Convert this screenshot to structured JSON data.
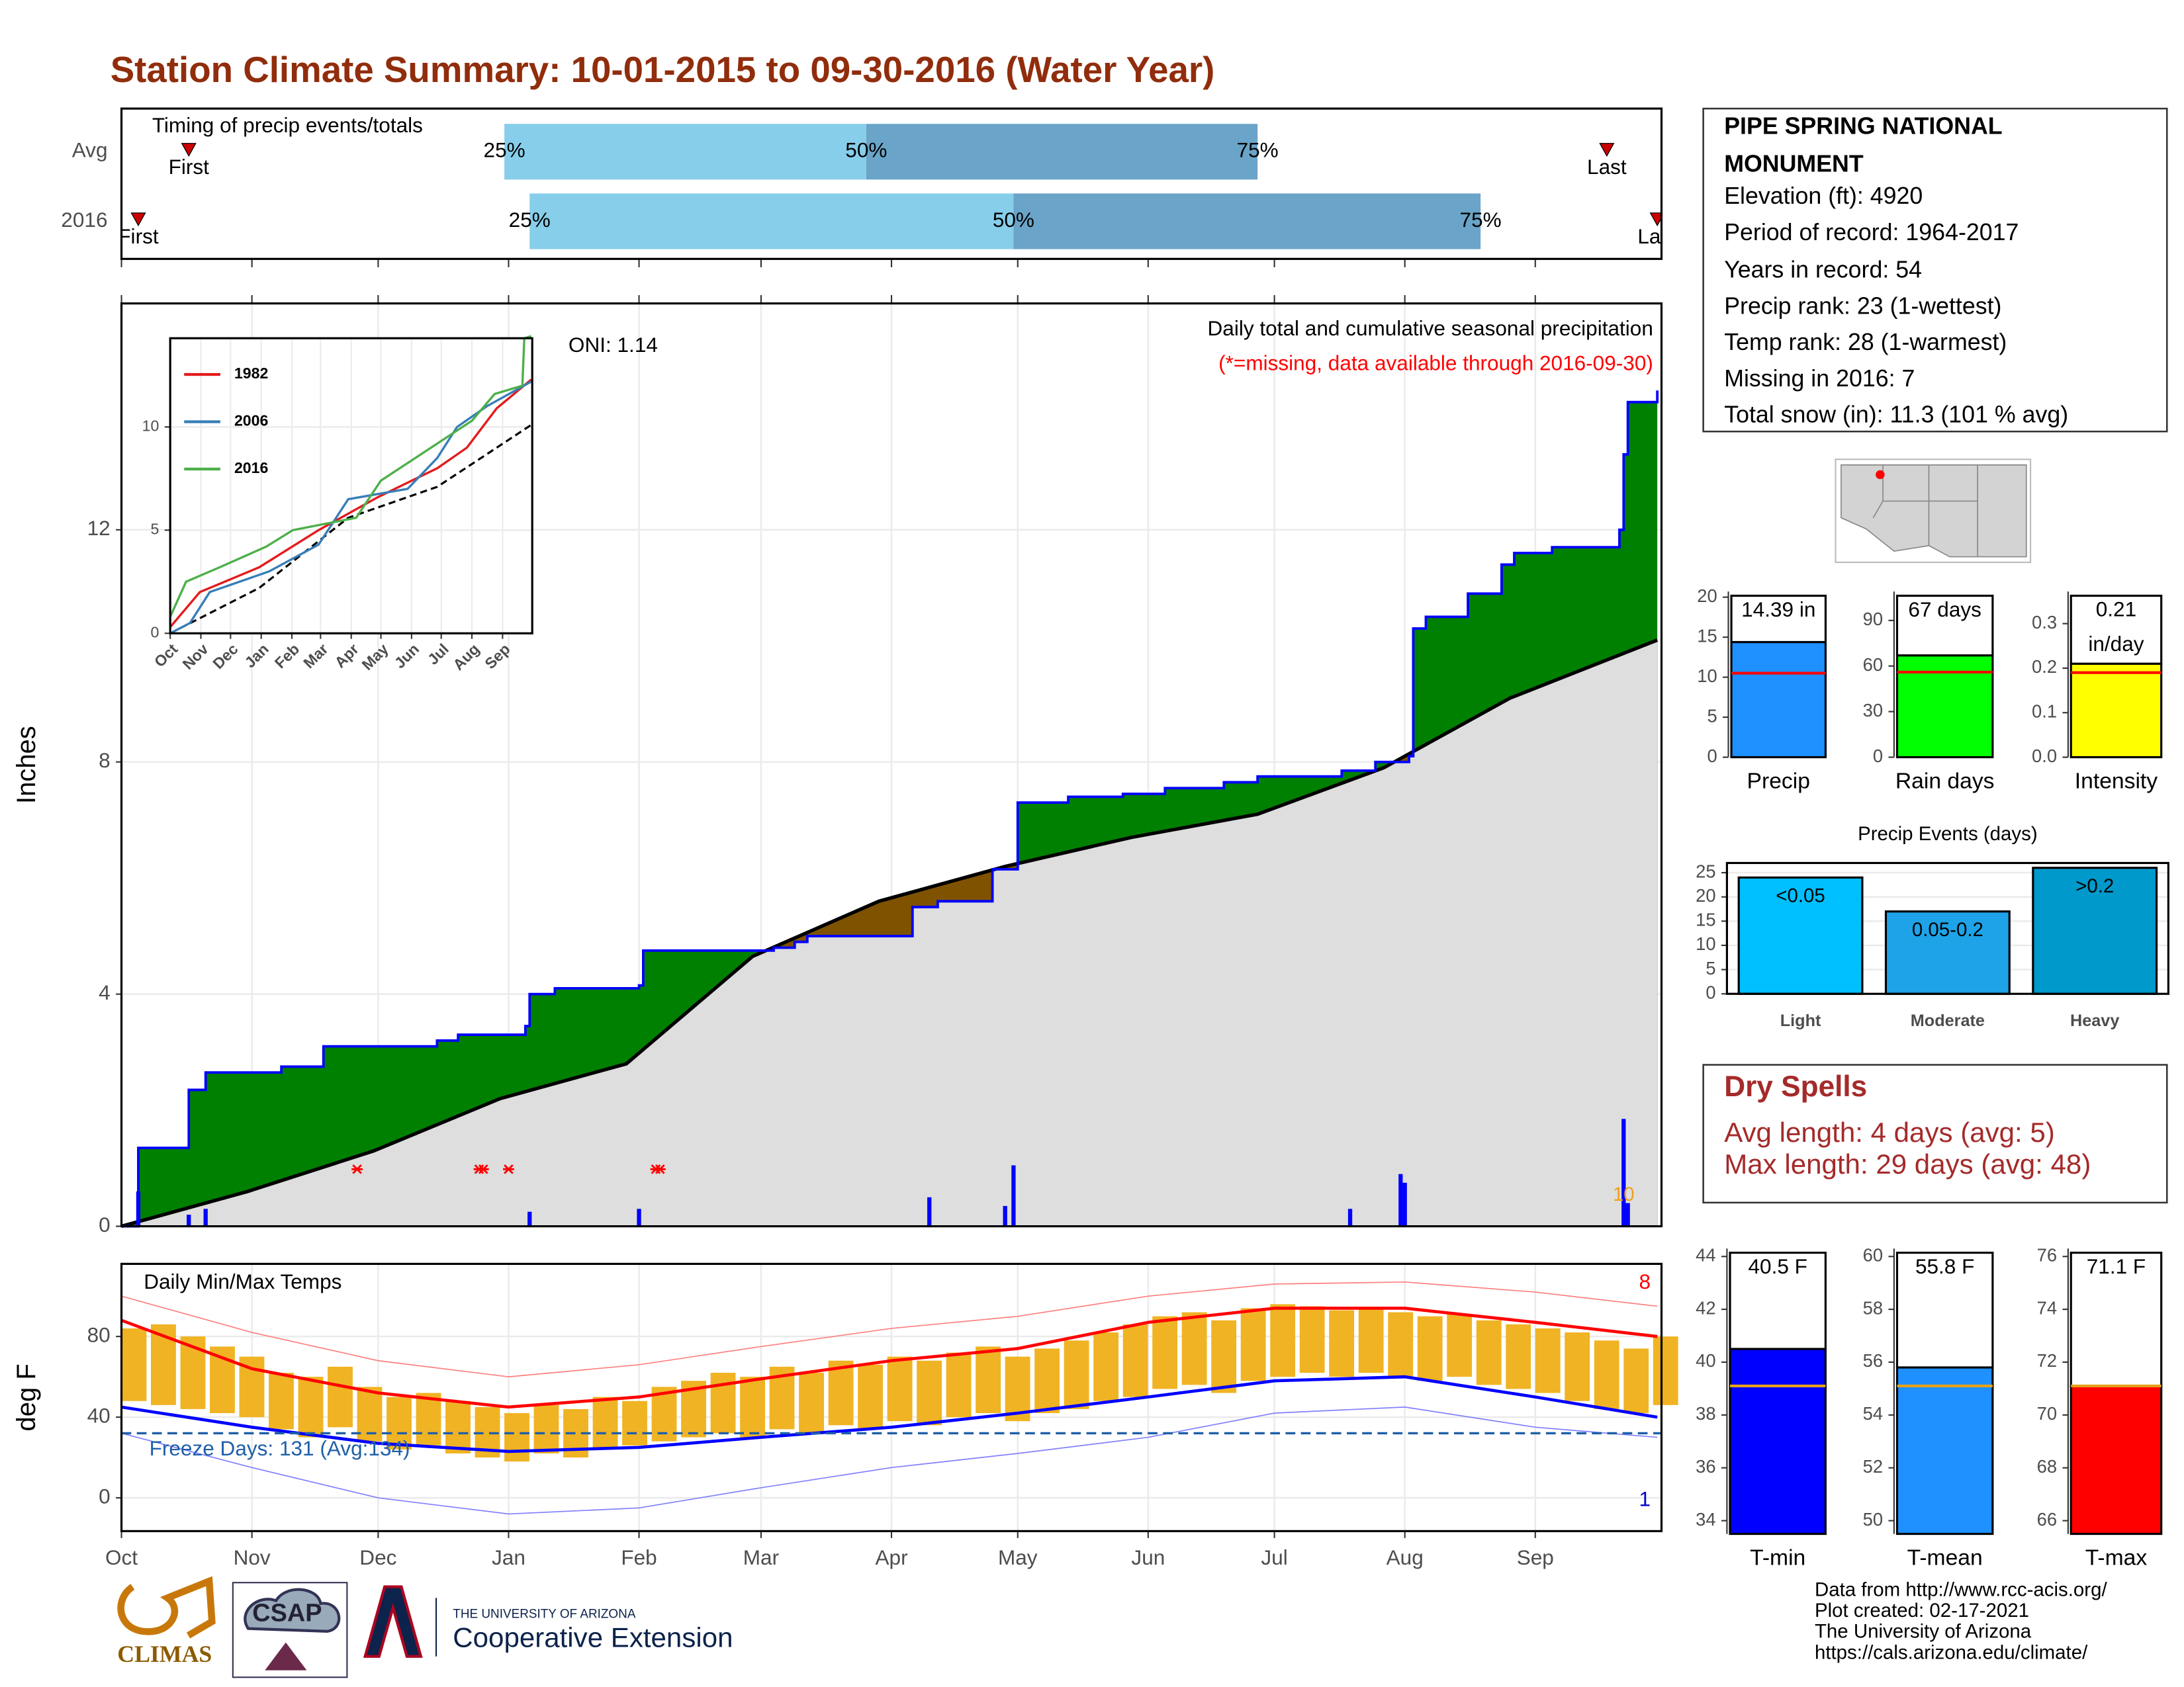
{
  "title": "Station Climate Summary: 10-01-2015 to 09-30-2016 (Water Year)",
  "info": {
    "title": "PIPE SPRING NATIONAL MONUMENT",
    "lines": [
      "Elevation (ft): 4920",
      "Period of record: 1964-2017",
      "Years in record: 54",
      "Precip rank: 23 (1-wettest)",
      "Temp rank: 28 (1-warmest)",
      "Missing in 2016: 7",
      "Total snow (in): 11.3 (101 % avg)"
    ]
  },
  "dry_spells": {
    "title": "Dry Spells",
    "lines": [
      "Avg length: 4 days (avg: 5)",
      "Max length: 29 days (avg: 48)"
    ]
  },
  "logos": [
    "CLIMAS",
    "CSAP",
    "THE UNIVERSITY OF ARIZONA",
    "Cooperative Extension"
  ],
  "credits": [
    "Data from http://www.rcc-acis.org/",
    "Plot created: 02-17-2021",
    "The University of Arizona",
    "https://cals.arizona.edu/climate/"
  ],
  "chart_data": [
    {
      "type": "timing",
      "title": "Timing of precip events/totals",
      "categories": [
        "Avg",
        "2016"
      ],
      "first": [
        16,
        4
      ],
      "p25": [
        91,
        97
      ],
      "p50": [
        177,
        212
      ],
      "p75": [
        270,
        323
      ],
      "last": [
        353,
        365
      ],
      "first_label": "First",
      "last_label": "Last",
      "quartile_labels": [
        "25%",
        "50%",
        "75%"
      ],
      "colors": [
        "#87ceeb",
        "#6aa4c8"
      ],
      "marker_color": "#cc0000",
      "xlim": [
        0,
        366
      ],
      "xticks": [
        0,
        31,
        61,
        92,
        123,
        152,
        183,
        213,
        244,
        274,
        305,
        336
      ]
    },
    {
      "type": "cumulative",
      "title": "Daily total and cumulative seasonal precipitation",
      "subtitle": "(*=missing, data available through 2016-09-30)",
      "annotation": "ONI: 1.14",
      "ylabel": "Inches",
      "xlim": [
        0,
        366
      ],
      "ylim": [
        0,
        15.9
      ],
      "yticks": [
        0,
        4,
        8,
        12
      ],
      "xticks": [
        0,
        31,
        61,
        92,
        123,
        152,
        183,
        213,
        244,
        274,
        305,
        336
      ],
      "grid": true,
      "series": [
        {
          "color": "#0000ff",
          "x": [
            0,
            4,
            16,
            20,
            38,
            48,
            75,
            80,
            96,
            97,
            103,
            123,
            124,
            155,
            160,
            163,
            188,
            194,
            207,
            213,
            225,
            238,
            248,
            262,
            270,
            290,
            298,
            306,
            307,
            310,
            320,
            328,
            331,
            340,
            356,
            357,
            358,
            365
          ],
          "values": [
            0,
            1.35,
            2.35,
            2.65,
            2.75,
            3.1,
            3.2,
            3.3,
            3.45,
            4.0,
            4.1,
            4.15,
            4.75,
            4.8,
            4.9,
            5.0,
            5.5,
            5.6,
            6.15,
            7.3,
            7.4,
            7.45,
            7.55,
            7.65,
            7.75,
            7.85,
            8.0,
            8.1,
            10.3,
            10.5,
            10.9,
            11.4,
            11.6,
            11.7,
            12.0,
            13.3,
            14.2,
            14.4
          ]
        },
        {
          "color": "#000000",
          "x": [
            0,
            30,
            60,
            90,
            120,
            150,
            180,
            210,
            240,
            270,
            300,
            330,
            365
          ],
          "values": [
            0,
            0.6,
            1.3,
            2.2,
            2.8,
            4.65,
            5.6,
            6.2,
            6.7,
            7.1,
            7.9,
            9.1,
            10.1
          ]
        }
      ],
      "daily": {
        "color": "#0000ff",
        "x": [
          4,
          16,
          20,
          97,
          123,
          192,
          210,
          212,
          292,
          304,
          305,
          357,
          358
        ],
        "values": [
          0.6,
          0.2,
          0.3,
          0.25,
          0.3,
          0.5,
          0.35,
          1.05,
          0.3,
          0.9,
          0.75,
          1.85,
          0.4
        ]
      },
      "missing": {
        "color": "#ff0000",
        "x": [
          56,
          85,
          86,
          92,
          127,
          128
        ]
      },
      "annotations": [
        {
          "text": "10",
          "x": 357,
          "color": "#f0a020"
        }
      ],
      "above_color": "#008000",
      "below_color": "#7f5200",
      "fill": "#dedede"
    },
    {
      "type": "line",
      "xlim": [
        0,
        366
      ],
      "ylim": [
        0,
        14.3
      ],
      "yticks": [
        0,
        5,
        10
      ],
      "xticks": [
        {
          "value": 0,
          "label": "Oct"
        },
        {
          "value": 31,
          "label": "Nov"
        },
        {
          "value": 61,
          "label": "Dec"
        },
        {
          "value": 92,
          "label": "Jan"
        },
        {
          "value": 123,
          "label": "Feb"
        },
        {
          "value": 152,
          "label": "Mar"
        },
        {
          "value": 183,
          "label": "Apr"
        },
        {
          "value": 213,
          "label": "May"
        },
        {
          "value": 244,
          "label": "Jun"
        },
        {
          "value": 274,
          "label": "Jul"
        },
        {
          "value": 305,
          "label": "Aug"
        },
        {
          "value": 336,
          "label": "Sep"
        }
      ],
      "series": [
        {
          "name": "1982",
          "color": "#e41a1c",
          "x": [
            0,
            30,
            90,
            150,
            210,
            270,
            300,
            330,
            365
          ],
          "values": [
            0.3,
            2.0,
            3.2,
            5.0,
            6.6,
            8.0,
            9.0,
            10.9,
            12.3
          ]
        },
        {
          "name": "2006",
          "color": "#377eb8",
          "x": [
            0,
            20,
            40,
            100,
            150,
            180,
            240,
            270,
            290,
            320,
            365
          ],
          "values": [
            0,
            0.5,
            2.0,
            3.0,
            4.3,
            6.5,
            7.0,
            8.5,
            10.0,
            11.0,
            12.2
          ]
        },
        {
          "name": "2016",
          "color": "#4daf4a",
          "x": [
            0,
            16,
            50,
            97,
            124,
            188,
            213,
            305,
            328,
            356,
            358,
            365
          ],
          "values": [
            0.8,
            2.5,
            3.2,
            4.2,
            5.0,
            5.6,
            7.4,
            10.3,
            11.6,
            12.0,
            14.3,
            14.4
          ]
        }
      ],
      "average": {
        "color": "#000000",
        "x": [
          0,
          90,
          180,
          270,
          365
        ],
        "values": [
          0,
          2.2,
          5.6,
          7.1,
          10.1
        ]
      }
    },
    {
      "type": "temperature",
      "title": "Daily Min/Max Temps",
      "ylabel": "deg F",
      "xlim": [
        0,
        366
      ],
      "ylim": [
        -16.5,
        116
      ],
      "yticks": [
        0,
        40,
        80
      ],
      "grid": true,
      "xticks": [
        {
          "value": 0,
          "label": "Oct"
        },
        {
          "value": 31,
          "label": "Nov"
        },
        {
          "value": 61,
          "label": "Dec"
        },
        {
          "value": 92,
          "label": "Jan"
        },
        {
          "value": 123,
          "label": "Feb"
        },
        {
          "value": 152,
          "label": "Mar"
        },
        {
          "value": 183,
          "label": "Apr"
        },
        {
          "value": 213,
          "label": "May"
        },
        {
          "value": 244,
          "label": "Jun"
        },
        {
          "value": 274,
          "label": "Jul"
        },
        {
          "value": 305,
          "label": "Aug"
        },
        {
          "value": 336,
          "label": "Sep"
        }
      ],
      "daily": {
        "color": "#f0b323",
        "step": 7,
        "x": [
          0,
          7,
          14,
          21,
          28,
          35,
          42,
          49,
          56,
          63,
          70,
          77,
          84,
          91,
          98,
          105,
          112,
          119,
          126,
          133,
          140,
          147,
          154,
          161,
          168,
          175,
          182,
          189,
          196,
          203,
          210,
          217,
          224,
          231,
          238,
          245,
          252,
          259,
          266,
          273,
          280,
          287,
          294,
          301,
          308,
          315,
          322,
          329,
          336,
          343,
          350,
          357,
          364
        ],
        "high": [
          84,
          86,
          80,
          75,
          70,
          62,
          60,
          65,
          55,
          50,
          52,
          48,
          45,
          42,
          46,
          44,
          50,
          48,
          55,
          58,
          62,
          60,
          65,
          62,
          68,
          66,
          70,
          68,
          72,
          75,
          70,
          74,
          78,
          82,
          86,
          90,
          92,
          88,
          94,
          96,
          95,
          93,
          94,
          92,
          90,
          91,
          88,
          86,
          84,
          82,
          78,
          74,
          80
        ],
        "low": [
          48,
          46,
          44,
          42,
          40,
          34,
          30,
          35,
          28,
          24,
          26,
          22,
          20,
          18,
          22,
          20,
          24,
          26,
          28,
          30,
          32,
          30,
          34,
          32,
          36,
          34,
          38,
          36,
          40,
          42,
          38,
          42,
          44,
          48,
          50,
          54,
          56,
          52,
          58,
          60,
          62,
          60,
          62,
          60,
          58,
          60,
          56,
          54,
          52,
          48,
          44,
          42,
          46
        ]
      },
      "series": [
        {
          "color": "#ff8080",
          "line_width": 0.8,
          "x": [
            0,
            31,
            61,
            92,
            123,
            152,
            183,
            213,
            244,
            274,
            305,
            336,
            365
          ],
          "values": [
            100,
            82,
            68,
            60,
            66,
            75,
            84,
            90,
            100,
            106,
            107,
            102,
            95
          ]
        },
        {
          "color": "#8080ff",
          "line_width": 0.8,
          "x": [
            0,
            31,
            61,
            92,
            123,
            152,
            183,
            213,
            244,
            274,
            305,
            336,
            365
          ],
          "values": [
            32,
            15,
            0,
            -8,
            -5,
            5,
            15,
            22,
            30,
            42,
            45,
            35,
            30
          ]
        },
        {
          "color": "#ff0000",
          "line_width": 2.2,
          "x": [
            0,
            31,
            61,
            92,
            123,
            152,
            183,
            213,
            244,
            274,
            305,
            336,
            365
          ],
          "values": [
            88,
            64,
            52,
            45,
            50,
            59,
            68,
            74,
            87,
            94,
            94,
            87,
            80
          ]
        },
        {
          "color": "#0000ff",
          "line_width": 2.2,
          "x": [
            0,
            31,
            61,
            92,
            123,
            152,
            183,
            213,
            244,
            274,
            305,
            336,
            365
          ],
          "values": [
            45,
            35,
            27,
            23,
            25,
            30,
            35,
            42,
            50,
            58,
            60,
            50,
            40
          ]
        }
      ],
      "freeze": {
        "value": 32,
        "label": "Freeze Days: 131 (Avg:134)",
        "color": "#1f5fa8"
      },
      "annotations": [
        {
          "text": "8",
          "color": "#ff0000"
        },
        {
          "text": "1",
          "color": "#0000cc"
        }
      ]
    },
    {
      "type": "bar",
      "categories": [
        "Precip"
      ],
      "values": [
        14.39
      ],
      "value_labels": [
        "14.39 in"
      ],
      "average": 10.5,
      "color": "#1e90ff",
      "average_color": "#ff0000",
      "ylim": [
        0,
        20.7
      ],
      "yticks": [
        0,
        5,
        10,
        15,
        20
      ]
    },
    {
      "type": "bar",
      "categories": [
        "Rain days"
      ],
      "values": [
        67
      ],
      "value_labels": [
        "67 days"
      ],
      "average": 56,
      "color": "#00ff00",
      "average_color": "#ff0000",
      "ylim": [
        0,
        109
      ],
      "yticks": [
        0,
        30,
        60,
        90
      ]
    },
    {
      "type": "bar",
      "categories": [
        "Intensity"
      ],
      "values": [
        0.21
      ],
      "value_labels": [
        "0.21 in/day"
      ],
      "average": 0.19,
      "color": "#ffff00",
      "average_color": "#ff0000",
      "ylim": [
        0,
        0.372
      ],
      "yticks": [
        {
          "value": 0,
          "label": "0.0"
        },
        0.1,
        0.2,
        0.3
      ]
    },
    {
      "type": "bar",
      "title": "Precip Events (days)",
      "categories": [
        "Light",
        "Moderate",
        "Heavy"
      ],
      "values": [
        24,
        17,
        26
      ],
      "bar_labels": [
        "<0.05",
        "0.05-0.2",
        ">0.2"
      ],
      "colors": [
        "#00bfff",
        "#1ea3e8",
        "#0099cc"
      ],
      "ylim": [
        0,
        27
      ],
      "yticks": [
        0,
        5,
        10,
        15,
        20,
        25
      ],
      "grid": true
    },
    {
      "type": "bar",
      "categories": [
        "T-min"
      ],
      "values": [
        40.5
      ],
      "value_labels": [
        "40.5 F"
      ],
      "average": 39.1,
      "color": "#0000ff",
      "average_color": "#e6a117",
      "ylim": [
        33.5,
        44.3
      ],
      "yticks": [
        34,
        36,
        38,
        40,
        42,
        44
      ]
    },
    {
      "type": "bar",
      "categories": [
        "T-mean"
      ],
      "values": [
        55.8
      ],
      "value_labels": [
        "55.8 F"
      ],
      "average": 55.1,
      "color": "#1e90ff",
      "average_color": "#e6a117",
      "ylim": [
        49.5,
        60.3
      ],
      "yticks": [
        50,
        52,
        54,
        56,
        58,
        60
      ]
    },
    {
      "type": "bar",
      "categories": [
        "T-max"
      ],
      "values": [
        71.1
      ],
      "value_labels": [
        "71.1 F"
      ],
      "average": 71.1,
      "color": "#ff0000",
      "average_color": "#e6a117",
      "ylim": [
        65.5,
        76.3
      ],
      "yticks": [
        66,
        68,
        70,
        72,
        74,
        76
      ]
    }
  ]
}
